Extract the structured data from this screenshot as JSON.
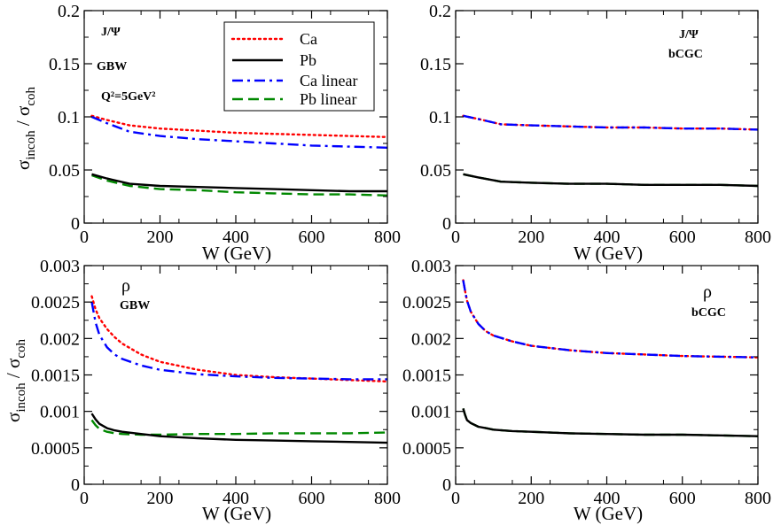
{
  "figure": {
    "xlabel": "W (GeV)",
    "ylabel_sigma": "σ",
    "ylabel_num_sub": "incoh",
    "ylabel_sep": "/",
    "ylabel_den_sub": "coh"
  },
  "legend": [
    {
      "label": "Ca",
      "color": "#ff0000",
      "style": "dotted"
    },
    {
      "label": "Pb",
      "color": "#000000",
      "style": "solid"
    },
    {
      "label": "Ca linear",
      "color": "#0000ff",
      "style": "dashdot"
    },
    {
      "label": "Pb linear",
      "color": "#008800",
      "style": "dashed"
    }
  ],
  "chart_data": [
    {
      "type": "line",
      "panel": "top-left",
      "annotations": [
        "J/Ψ",
        "GBW",
        "Q²=5GeV²"
      ],
      "xlabel": "W (GeV)",
      "ylabel": "σincoh / σcoh",
      "xlim": [
        0,
        800
      ],
      "ylim": [
        0,
        0.2
      ],
      "xticks": [
        0,
        200,
        400,
        600,
        800
      ],
      "yticks": [
        0,
        0.05,
        0.1,
        0.15,
        0.2
      ],
      "ytick_labels": [
        "0",
        "0.05",
        "0.1",
        "0.15",
        "0.2"
      ],
      "series": [
        {
          "name": "Ca",
          "color": "#ff0000",
          "style": "dotted",
          "x": [
            20,
            60,
            120,
            200,
            300,
            400,
            500,
            600,
            700,
            800
          ],
          "y": [
            0.101,
            0.097,
            0.092,
            0.089,
            0.087,
            0.085,
            0.084,
            0.083,
            0.082,
            0.081
          ]
        },
        {
          "name": "Pb",
          "color": "#000000",
          "style": "solid",
          "x": [
            20,
            60,
            120,
            200,
            300,
            400,
            500,
            600,
            700,
            800
          ],
          "y": [
            0.046,
            0.042,
            0.037,
            0.035,
            0.034,
            0.033,
            0.032,
            0.031,
            0.03,
            0.03
          ]
        },
        {
          "name": "Ca linear",
          "color": "#0000ff",
          "style": "dashdot",
          "x": [
            20,
            60,
            120,
            200,
            300,
            400,
            500,
            600,
            700,
            800
          ],
          "y": [
            0.1,
            0.094,
            0.086,
            0.082,
            0.079,
            0.077,
            0.075,
            0.073,
            0.072,
            0.071
          ]
        },
        {
          "name": "Pb linear",
          "color": "#008800",
          "style": "dashed",
          "x": [
            20,
            60,
            120,
            200,
            300,
            400,
            500,
            600,
            700,
            800
          ],
          "y": [
            0.045,
            0.04,
            0.035,
            0.032,
            0.031,
            0.029,
            0.028,
            0.027,
            0.027,
            0.026
          ]
        }
      ]
    },
    {
      "type": "line",
      "panel": "top-right",
      "annotations": [
        "J/Ψ",
        "bCGC"
      ],
      "xlabel": "W (GeV)",
      "xlim": [
        0,
        800
      ],
      "ylim": [
        0,
        0.2
      ],
      "xticks": [
        0,
        200,
        400,
        600,
        800
      ],
      "yticks": [
        0,
        0.05,
        0.1,
        0.15,
        0.2
      ],
      "ytick_labels": [
        "0",
        "0.05",
        "0.1",
        "0.15",
        "0.2"
      ],
      "series": [
        {
          "name": "Ca",
          "color": "#ff0000",
          "style": "dotted",
          "x": [
            20,
            60,
            120,
            200,
            300,
            400,
            500,
            600,
            700,
            800
          ],
          "y": [
            0.101,
            0.098,
            0.093,
            0.092,
            0.091,
            0.09,
            0.09,
            0.089,
            0.089,
            0.088
          ]
        },
        {
          "name": "Pb",
          "color": "#000000",
          "style": "solid",
          "x": [
            20,
            60,
            120,
            200,
            300,
            400,
            500,
            600,
            700,
            800
          ],
          "y": [
            0.046,
            0.043,
            0.039,
            0.038,
            0.037,
            0.037,
            0.036,
            0.036,
            0.036,
            0.035
          ]
        },
        {
          "name": "Ca linear",
          "color": "#0000ff",
          "style": "dashdot",
          "x": [
            20,
            60,
            120,
            200,
            300,
            400,
            500,
            600,
            700,
            800
          ],
          "y": [
            0.101,
            0.098,
            0.093,
            0.092,
            0.091,
            0.09,
            0.09,
            0.089,
            0.089,
            0.088
          ]
        },
        {
          "name": "Pb linear",
          "color": "#008800",
          "style": "dashed",
          "x": [
            20,
            60,
            120,
            200,
            300,
            400,
            500,
            600,
            700,
            800
          ],
          "y": [
            0.046,
            0.043,
            0.039,
            0.038,
            0.037,
            0.037,
            0.036,
            0.036,
            0.036,
            0.035
          ]
        }
      ]
    },
    {
      "type": "line",
      "panel": "bottom-left",
      "annotations": [
        "ρ",
        "GBW"
      ],
      "xlabel": "W (GeV)",
      "ylabel": "σincoh / σcoh",
      "xlim": [
        0,
        800
      ],
      "ylim": [
        0,
        0.003
      ],
      "xticks": [
        0,
        200,
        400,
        600,
        800
      ],
      "yticks": [
        0,
        0.0005,
        0.001,
        0.0015,
        0.002,
        0.0025,
        0.003
      ],
      "ytick_labels": [
        "0",
        "0.0005",
        "0.001",
        "0.0015",
        "0.002",
        "0.0025",
        "0.003"
      ],
      "series": [
        {
          "name": "Ca",
          "color": "#ff0000",
          "style": "dotted",
          "x": [
            20,
            30,
            40,
            60,
            80,
            100,
            150,
            200,
            300,
            400,
            500,
            600,
            700,
            800
          ],
          "y": [
            0.00258,
            0.0024,
            0.00228,
            0.00213,
            0.00202,
            0.00193,
            0.00178,
            0.00168,
            0.00157,
            0.0015,
            0.00147,
            0.00145,
            0.00143,
            0.00141
          ]
        },
        {
          "name": "Pb",
          "color": "#000000",
          "style": "solid",
          "x": [
            20,
            30,
            40,
            60,
            80,
            100,
            150,
            200,
            300,
            400,
            500,
            600,
            700,
            800
          ],
          "y": [
            0.00097,
            0.00089,
            0.00083,
            0.00077,
            0.00074,
            0.00072,
            0.00069,
            0.00066,
            0.00063,
            0.00061,
            0.0006,
            0.00059,
            0.00058,
            0.00057
          ]
        },
        {
          "name": "Ca linear",
          "color": "#0000ff",
          "style": "dashdot",
          "x": [
            20,
            30,
            40,
            60,
            80,
            100,
            150,
            200,
            300,
            400,
            500,
            600,
            700,
            800
          ],
          "y": [
            0.0025,
            0.00222,
            0.00205,
            0.00188,
            0.00178,
            0.00172,
            0.00163,
            0.00157,
            0.00151,
            0.00148,
            0.00146,
            0.00145,
            0.00144,
            0.00144
          ]
        },
        {
          "name": "Pb linear",
          "color": "#008800",
          "style": "dashed",
          "x": [
            20,
            30,
            40,
            60,
            80,
            100,
            150,
            200,
            300,
            400,
            500,
            600,
            700,
            800
          ],
          "y": [
            0.00088,
            0.00081,
            0.00076,
            0.00072,
            0.0007,
            0.00069,
            0.00068,
            0.00068,
            0.00069,
            0.00069,
            0.0007,
            0.0007,
            0.0007,
            0.00071
          ]
        }
      ]
    },
    {
      "type": "line",
      "panel": "bottom-right",
      "annotations": [
        "ρ",
        "bCGC"
      ],
      "xlabel": "W (GeV)",
      "xlim": [
        0,
        800
      ],
      "ylim": [
        0,
        0.003
      ],
      "xticks": [
        0,
        200,
        400,
        600,
        800
      ],
      "yticks": [
        0,
        0.0005,
        0.001,
        0.0015,
        0.002,
        0.0025,
        0.003
      ],
      "ytick_labels": [
        "0",
        "0.0005",
        "0.001",
        "0.0015",
        "0.002",
        "0.0025",
        "0.003"
      ],
      "series": [
        {
          "name": "Ca",
          "color": "#ff0000",
          "style": "dotted",
          "x": [
            20,
            25,
            30,
            40,
            60,
            80,
            100,
            150,
            200,
            300,
            400,
            500,
            600,
            700,
            800
          ],
          "y": [
            0.0028,
            0.00265,
            0.00252,
            0.00237,
            0.0022,
            0.0021,
            0.00204,
            0.00196,
            0.0019,
            0.00184,
            0.0018,
            0.00178,
            0.00176,
            0.00175,
            0.00174
          ]
        },
        {
          "name": "Pb",
          "color": "#000000",
          "style": "solid",
          "x": [
            20,
            25,
            30,
            40,
            60,
            80,
            100,
            150,
            200,
            300,
            400,
            500,
            600,
            700,
            800
          ],
          "y": [
            0.00104,
            0.00095,
            0.00088,
            0.00084,
            0.00079,
            0.00077,
            0.00075,
            0.00073,
            0.00072,
            0.0007,
            0.00069,
            0.00068,
            0.00068,
            0.00067,
            0.00066
          ]
        },
        {
          "name": "Ca linear",
          "color": "#0000ff",
          "style": "dashdot",
          "x": [
            20,
            25,
            30,
            40,
            60,
            80,
            100,
            150,
            200,
            300,
            400,
            500,
            600,
            700,
            800
          ],
          "y": [
            0.0028,
            0.00265,
            0.00252,
            0.00237,
            0.0022,
            0.0021,
            0.00204,
            0.00196,
            0.0019,
            0.00184,
            0.0018,
            0.00178,
            0.00176,
            0.00175,
            0.00174
          ]
        },
        {
          "name": "Pb linear",
          "color": "#008800",
          "style": "dashed",
          "x": [
            20,
            25,
            30,
            40,
            60,
            80,
            100,
            150,
            200,
            300,
            400,
            500,
            600,
            700,
            800
          ],
          "y": [
            0.00104,
            0.00095,
            0.00088,
            0.00084,
            0.00079,
            0.00077,
            0.00075,
            0.00073,
            0.00072,
            0.0007,
            0.00069,
            0.00068,
            0.00068,
            0.00067,
            0.00066
          ]
        }
      ]
    }
  ]
}
